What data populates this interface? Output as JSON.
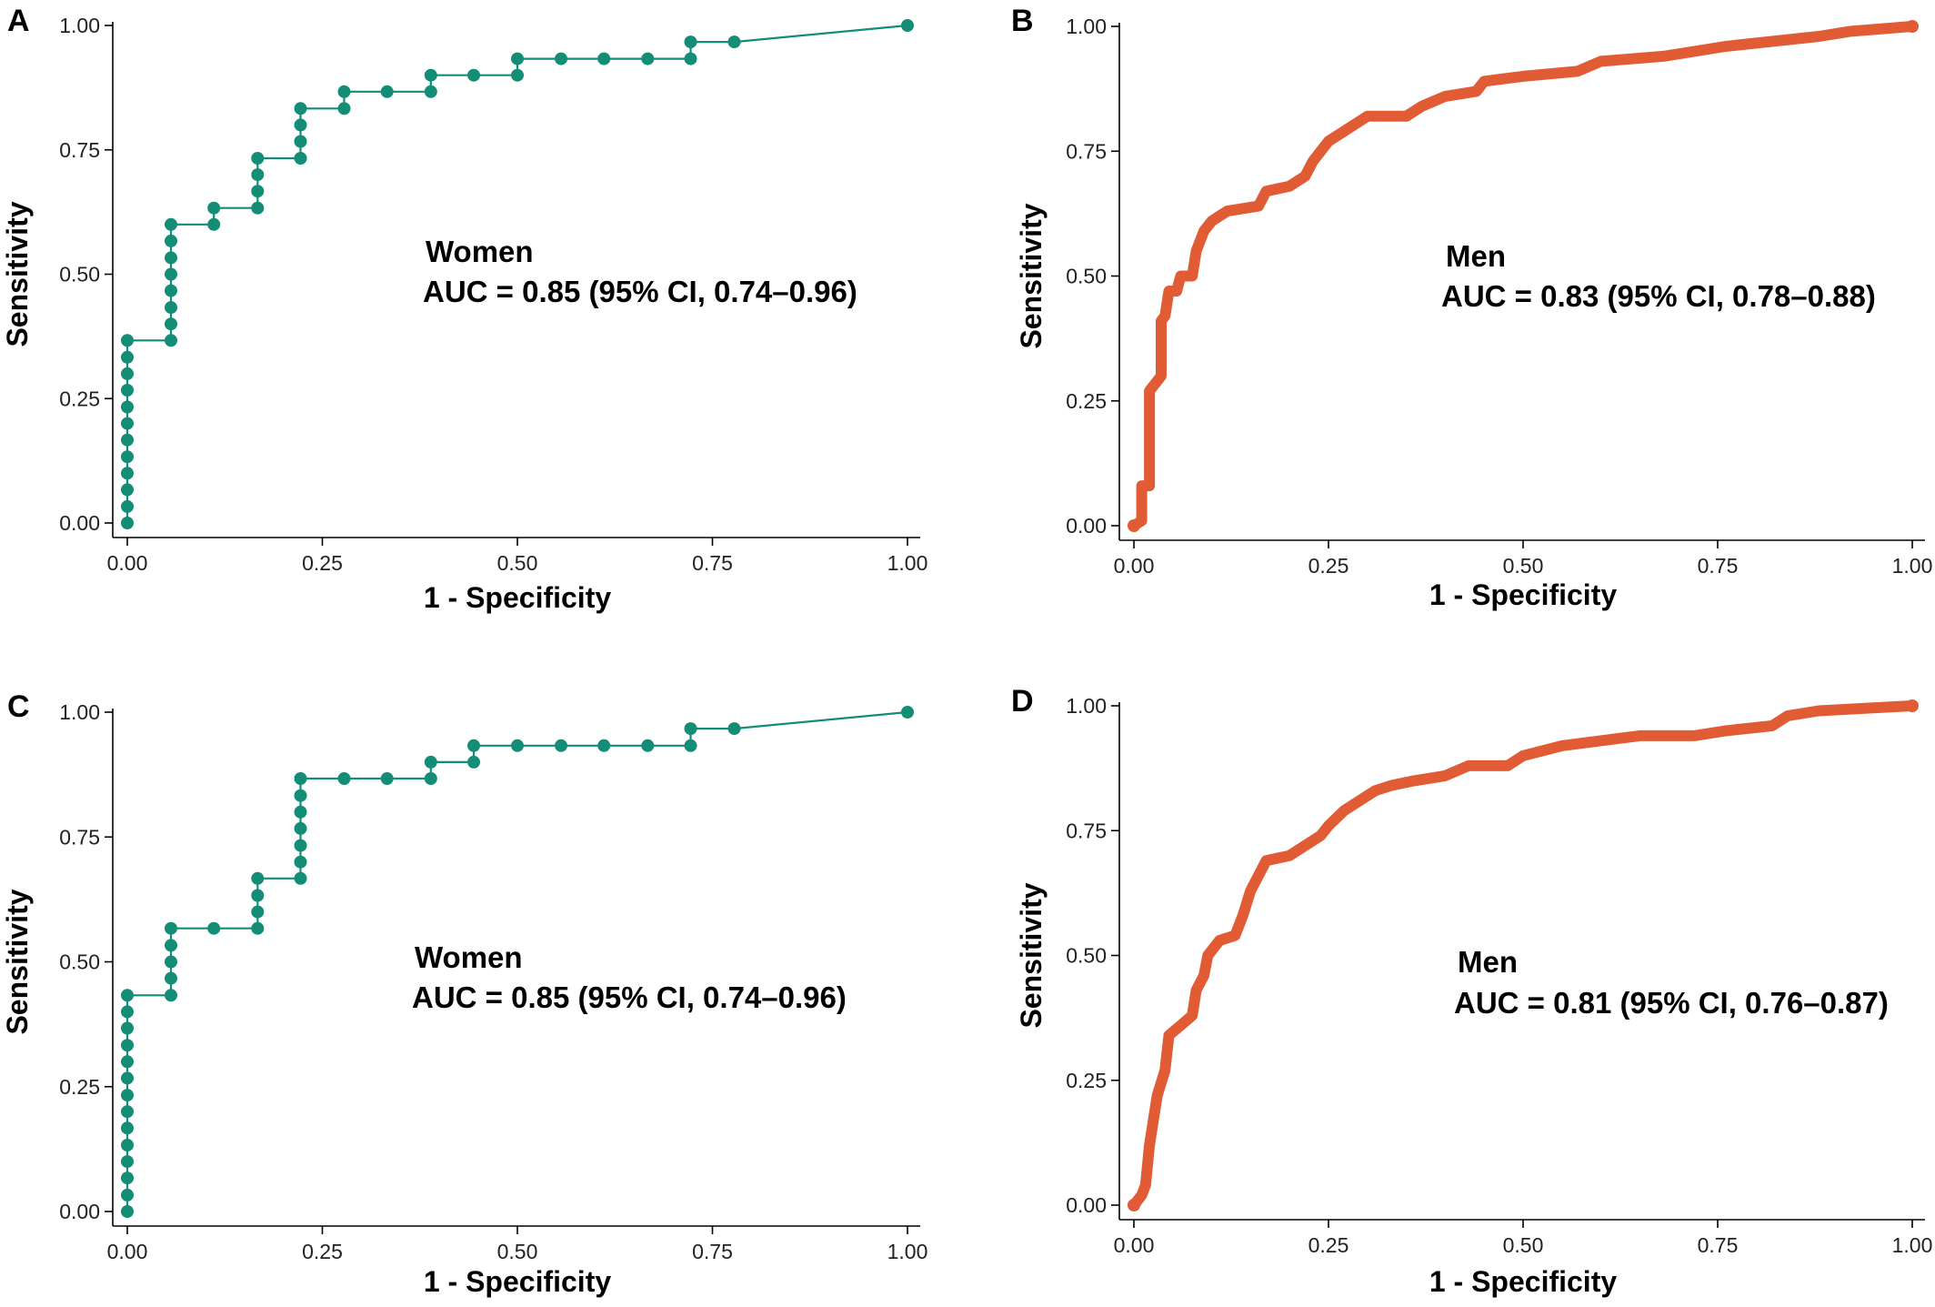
{
  "figure": {
    "colors": {
      "women": "#138d75",
      "men": "#e15b35"
    },
    "tick_labels": [
      "0.00",
      "0.25",
      "0.50",
      "0.75",
      "1.00"
    ]
  },
  "chart_data": [
    {
      "type": "line",
      "panel": "A",
      "xlabel": "1 - Specificity",
      "ylabel": "Sensitivity",
      "xlim": [
        0,
        1
      ],
      "ylim": [
        0,
        1
      ],
      "group_label": "Women",
      "auc_text": "AUC = 0.85 (95% CI, 0.74–0.96)",
      "series": [
        {
          "name": "Women",
          "marker": "dot",
          "points": [
            [
              0,
              0
            ],
            [
              0,
              0.033
            ],
            [
              0,
              0.067
            ],
            [
              0,
              0.1
            ],
            [
              0,
              0.133
            ],
            [
              0,
              0.167
            ],
            [
              0,
              0.2
            ],
            [
              0,
              0.233
            ],
            [
              0,
              0.267
            ],
            [
              0,
              0.3
            ],
            [
              0,
              0.333
            ],
            [
              0,
              0.367
            ],
            [
              0.056,
              0.367
            ],
            [
              0.056,
              0.4
            ],
            [
              0.056,
              0.433
            ],
            [
              0.056,
              0.467
            ],
            [
              0.056,
              0.5
            ],
            [
              0.056,
              0.533
            ],
            [
              0.056,
              0.567
            ],
            [
              0.056,
              0.6
            ],
            [
              0.111,
              0.6
            ],
            [
              0.111,
              0.633
            ],
            [
              0.167,
              0.633
            ],
            [
              0.167,
              0.667
            ],
            [
              0.167,
              0.7
            ],
            [
              0.167,
              0.733
            ],
            [
              0.222,
              0.733
            ],
            [
              0.222,
              0.767
            ],
            [
              0.222,
              0.8
            ],
            [
              0.222,
              0.833
            ],
            [
              0.278,
              0.833
            ],
            [
              0.278,
              0.867
            ],
            [
              0.333,
              0.867
            ],
            [
              0.389,
              0.867
            ],
            [
              0.389,
              0.9
            ],
            [
              0.444,
              0.9
            ],
            [
              0.5,
              0.9
            ],
            [
              0.5,
              0.933
            ],
            [
              0.556,
              0.933
            ],
            [
              0.611,
              0.933
            ],
            [
              0.667,
              0.933
            ],
            [
              0.722,
              0.933
            ],
            [
              0.722,
              0.967
            ],
            [
              0.778,
              0.967
            ],
            [
              1,
              1
            ]
          ]
        }
      ]
    },
    {
      "type": "line",
      "panel": "B",
      "xlabel": "1 - Specificity",
      "ylabel": "Sensitivity",
      "xlim": [
        0,
        1
      ],
      "ylim": [
        0,
        1
      ],
      "group_label": "Men",
      "auc_text": "AUC = 0.83 (95% CI, 0.78–0.88)",
      "series": [
        {
          "name": "Men",
          "marker": "dense",
          "points": [
            [
              0,
              0
            ],
            [
              0.01,
              0.01
            ],
            [
              0.01,
              0.08
            ],
            [
              0.02,
              0.08
            ],
            [
              0.02,
              0.27
            ],
            [
              0.03,
              0.29
            ],
            [
              0.035,
              0.3
            ],
            [
              0.035,
              0.41
            ],
            [
              0.04,
              0.42
            ],
            [
              0.045,
              0.47
            ],
            [
              0.055,
              0.47
            ],
            [
              0.06,
              0.5
            ],
            [
              0.075,
              0.5
            ],
            [
              0.08,
              0.55
            ],
            [
              0.09,
              0.59
            ],
            [
              0.1,
              0.61
            ],
            [
              0.12,
              0.63
            ],
            [
              0.16,
              0.64
            ],
            [
              0.17,
              0.67
            ],
            [
              0.2,
              0.68
            ],
            [
              0.22,
              0.7
            ],
            [
              0.23,
              0.73
            ],
            [
              0.25,
              0.77
            ],
            [
              0.27,
              0.79
            ],
            [
              0.3,
              0.82
            ],
            [
              0.35,
              0.82
            ],
            [
              0.37,
              0.84
            ],
            [
              0.4,
              0.86
            ],
            [
              0.44,
              0.87
            ],
            [
              0.45,
              0.89
            ],
            [
              0.5,
              0.9
            ],
            [
              0.57,
              0.91
            ],
            [
              0.6,
              0.93
            ],
            [
              0.68,
              0.94
            ],
            [
              0.72,
              0.95
            ],
            [
              0.76,
              0.96
            ],
            [
              0.82,
              0.97
            ],
            [
              0.88,
              0.98
            ],
            [
              0.92,
              0.99
            ],
            [
              1,
              1
            ]
          ]
        }
      ]
    },
    {
      "type": "line",
      "panel": "C",
      "xlabel": "1 - Specificity",
      "ylabel": "Sensitivity",
      "xlim": [
        0,
        1
      ],
      "ylim": [
        0,
        1
      ],
      "group_label": "Women",
      "auc_text": "AUC = 0.85 (95% CI, 0.74–0.96)",
      "series": [
        {
          "name": "Women",
          "marker": "dot",
          "points": [
            [
              0,
              0
            ],
            [
              0,
              0.033
            ],
            [
              0,
              0.067
            ],
            [
              0,
              0.1
            ],
            [
              0,
              0.133
            ],
            [
              0,
              0.167
            ],
            [
              0,
              0.2
            ],
            [
              0,
              0.233
            ],
            [
              0,
              0.267
            ],
            [
              0,
              0.3
            ],
            [
              0,
              0.333
            ],
            [
              0,
              0.367
            ],
            [
              0,
              0.4
            ],
            [
              0,
              0.433
            ],
            [
              0.056,
              0.433
            ],
            [
              0.056,
              0.467
            ],
            [
              0.056,
              0.5
            ],
            [
              0.056,
              0.533
            ],
            [
              0.056,
              0.567
            ],
            [
              0.111,
              0.567
            ],
            [
              0.167,
              0.567
            ],
            [
              0.167,
              0.6
            ],
            [
              0.167,
              0.633
            ],
            [
              0.167,
              0.667
            ],
            [
              0.222,
              0.667
            ],
            [
              0.222,
              0.7
            ],
            [
              0.222,
              0.733
            ],
            [
              0.222,
              0.767
            ],
            [
              0.222,
              0.8
            ],
            [
              0.222,
              0.833
            ],
            [
              0.222,
              0.867
            ],
            [
              0.278,
              0.867
            ],
            [
              0.333,
              0.867
            ],
            [
              0.389,
              0.867
            ],
            [
              0.389,
              0.9
            ],
            [
              0.444,
              0.9
            ],
            [
              0.444,
              0.933
            ],
            [
              0.5,
              0.933
            ],
            [
              0.556,
              0.933
            ],
            [
              0.611,
              0.933
            ],
            [
              0.667,
              0.933
            ],
            [
              0.722,
              0.933
            ],
            [
              0.722,
              0.967
            ],
            [
              0.778,
              0.967
            ],
            [
              1,
              1
            ]
          ]
        }
      ]
    },
    {
      "type": "line",
      "panel": "D",
      "xlabel": "1 - Specificity",
      "ylabel": "Sensitivity",
      "xlim": [
        0,
        1
      ],
      "ylim": [
        0,
        1
      ],
      "group_label": "Men",
      "auc_text": "AUC = 0.81 (95% CI, 0.76–0.87)",
      "series": [
        {
          "name": "Men",
          "marker": "dense",
          "points": [
            [
              0,
              0
            ],
            [
              0.01,
              0.02
            ],
            [
              0.015,
              0.04
            ],
            [
              0.02,
              0.12
            ],
            [
              0.03,
              0.22
            ],
            [
              0.04,
              0.27
            ],
            [
              0.045,
              0.34
            ],
            [
              0.06,
              0.36
            ],
            [
              0.075,
              0.38
            ],
            [
              0.08,
              0.43
            ],
            [
              0.09,
              0.46
            ],
            [
              0.095,
              0.5
            ],
            [
              0.11,
              0.53
            ],
            [
              0.13,
              0.54
            ],
            [
              0.14,
              0.58
            ],
            [
              0.15,
              0.63
            ],
            [
              0.16,
              0.66
            ],
            [
              0.17,
              0.69
            ],
            [
              0.2,
              0.7
            ],
            [
              0.22,
              0.72
            ],
            [
              0.24,
              0.74
            ],
            [
              0.25,
              0.76
            ],
            [
              0.27,
              0.79
            ],
            [
              0.29,
              0.81
            ],
            [
              0.31,
              0.83
            ],
            [
              0.33,
              0.84
            ],
            [
              0.36,
              0.85
            ],
            [
              0.4,
              0.86
            ],
            [
              0.43,
              0.88
            ],
            [
              0.48,
              0.88
            ],
            [
              0.5,
              0.9
            ],
            [
              0.55,
              0.92
            ],
            [
              0.6,
              0.93
            ],
            [
              0.65,
              0.94
            ],
            [
              0.72,
              0.94
            ],
            [
              0.76,
              0.95
            ],
            [
              0.82,
              0.96
            ],
            [
              0.84,
              0.98
            ],
            [
              0.88,
              0.99
            ],
            [
              1,
              1
            ]
          ]
        }
      ]
    }
  ]
}
